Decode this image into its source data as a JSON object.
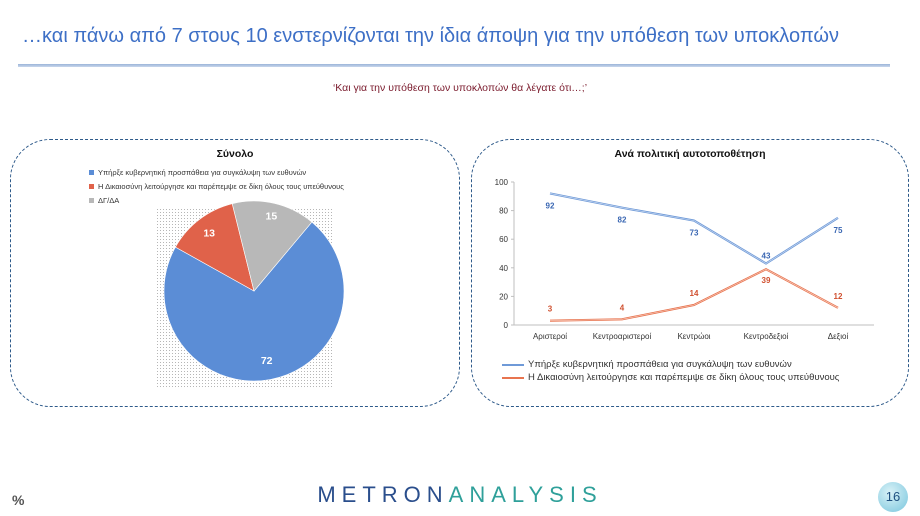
{
  "header": {
    "title": "…και πάνω από 7 στους 10 ενστερνίζονται την ίδια άποψη για την υπόθεση των υποκλοπών",
    "question": "‘Και για την υπόθεση των υποκλοπών θα λέγατε ότι…;’"
  },
  "colors": {
    "blue": "#5b8dd6",
    "red": "#e0624a",
    "gray": "#b8b8b8",
    "line_blue": "#6f9ad8",
    "line_red": "#e8744f"
  },
  "footer": {
    "percent_sign": "%",
    "logo_main": "METRON",
    "logo_tail": "ANALYSIS",
    "page_number": "16"
  },
  "chart_data": [
    {
      "type": "pie",
      "title": "Σύνολο",
      "categories": [
        "Υπήρξε κυβερνητική προσπάθεια για συγκάλυψη των ευθυνών",
        "Η Δικαιοσύνη λειτούργησε και παρέπεμψε σε δίκη όλους τους υπεύθυνους",
        "ΔΓ/ΔΑ"
      ],
      "values": [
        72,
        13,
        15
      ],
      "value_labels": [
        "72",
        "13",
        "15"
      ],
      "legend": "top-left"
    },
    {
      "type": "line",
      "title": "Ανά πολιτική αυτοτοποθέτηση",
      "categories": [
        "Αριστεροί",
        "Κεντροαριστεροί",
        "Κεντρώοι",
        "Κεντροδεξιοί",
        "Δεξιοί"
      ],
      "ylim": [
        0,
        100
      ],
      "yticks": [
        "0",
        "20",
        "40",
        "60",
        "80",
        "100"
      ],
      "grid": false,
      "legend": "bottom",
      "series": [
        {
          "name": "Υπήρξε κυβερνητική προσπάθεια για συγκάλυψη των ευθυνών",
          "values": [
            92,
            82,
            73,
            43,
            75
          ],
          "labels": [
            "92",
            "82",
            "73",
            "43",
            "75"
          ]
        },
        {
          "name": "Η Δικαιοσύνη λειτούργησε και παρέπεμψε σε δίκη όλους τους υπεύθυνους",
          "values": [
            3,
            4,
            14,
            39,
            12
          ],
          "labels": [
            "3",
            "4",
            "14",
            "39",
            "12"
          ]
        }
      ]
    }
  ]
}
